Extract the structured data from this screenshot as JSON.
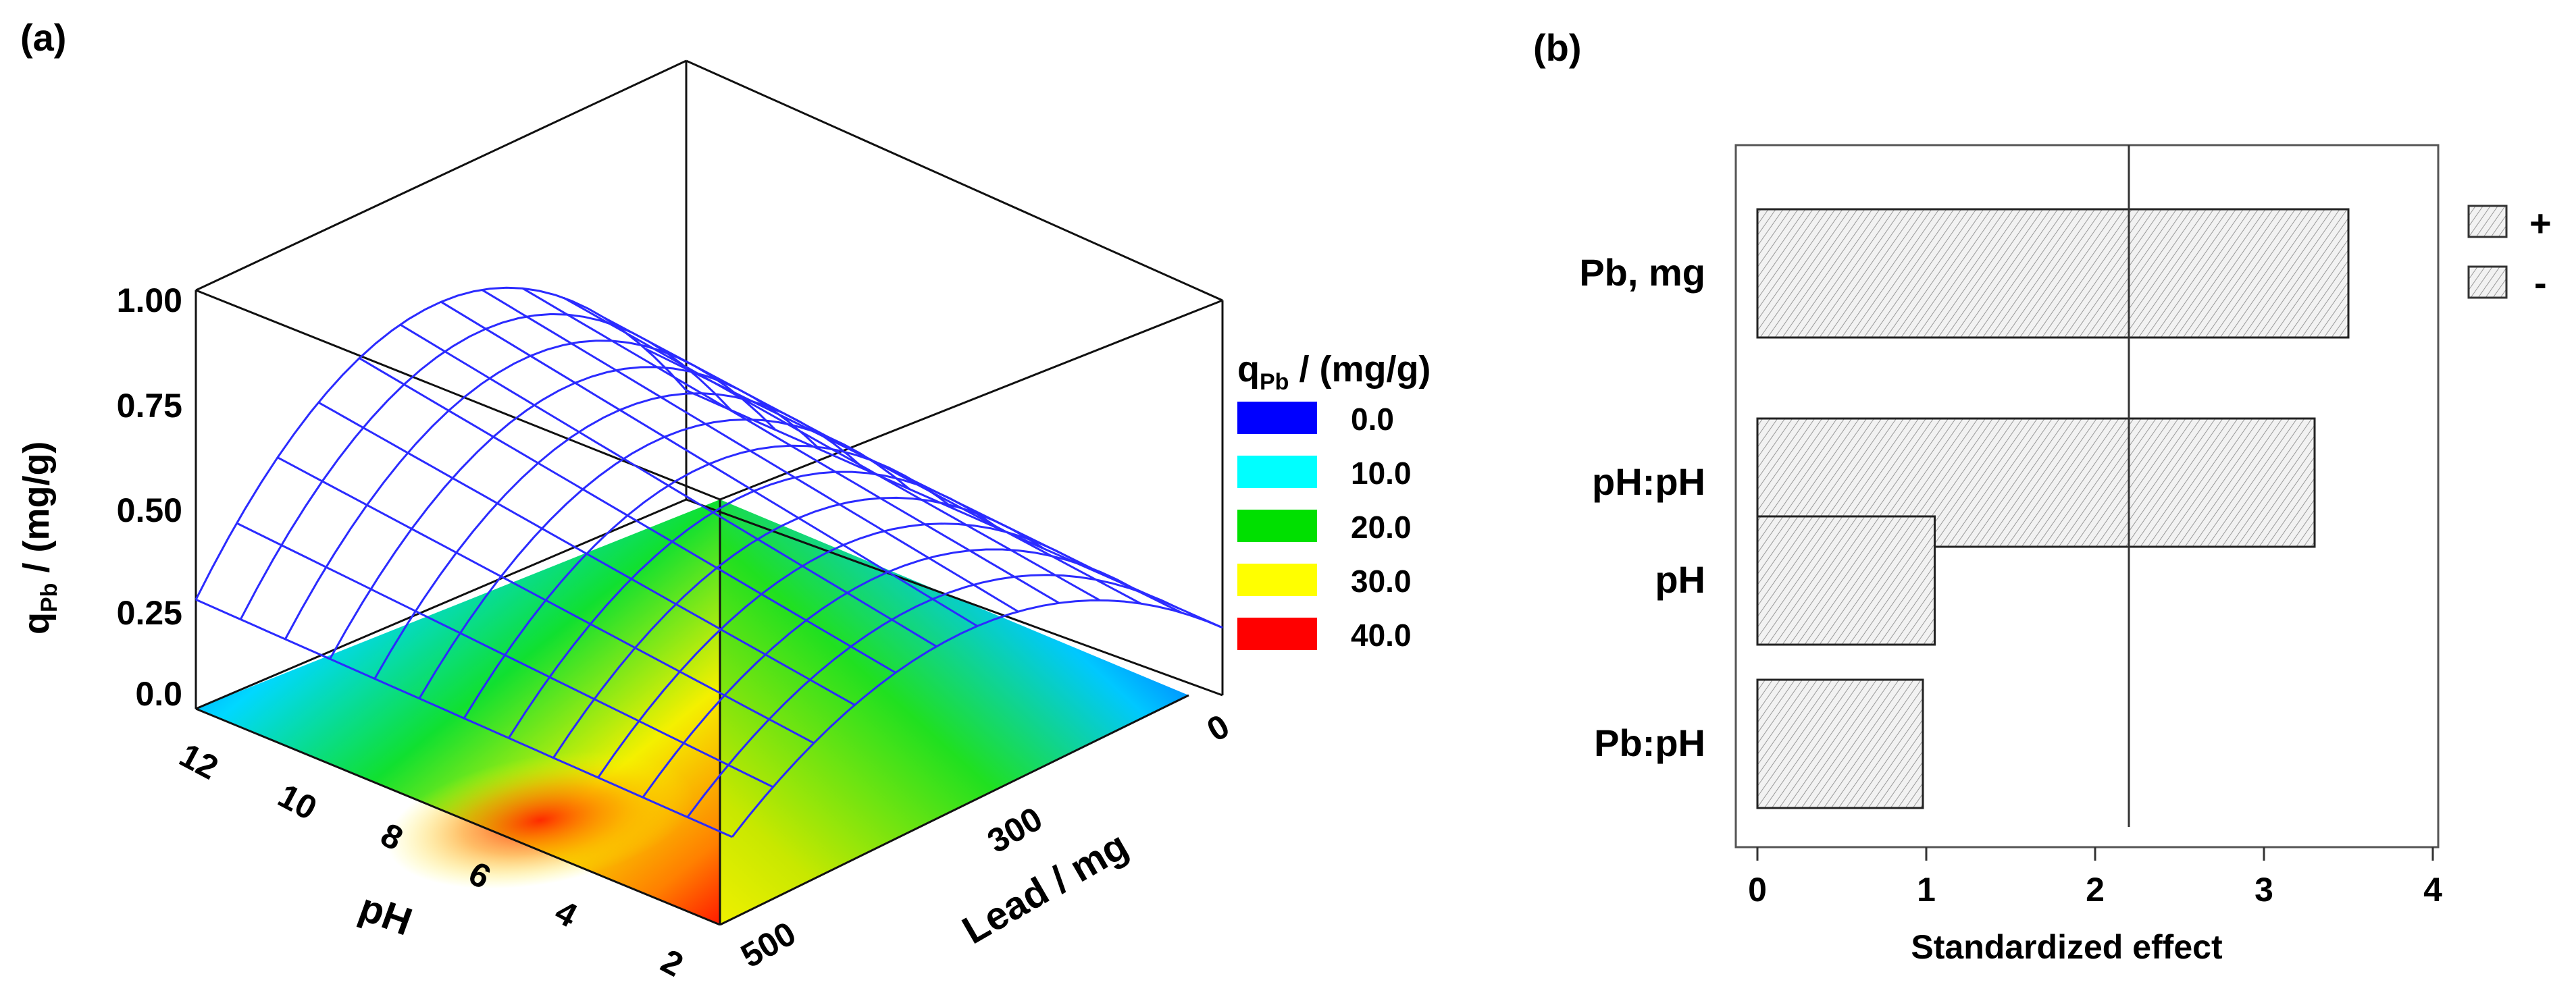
{
  "chart_data": [
    {
      "type": "surface",
      "panel_label": "(a)",
      "zlabel": "qPb / (mg/g)",
      "zlabel_main": "q",
      "zlabel_sub": "Pb",
      "zlabel_rest": " / (mg/g)",
      "xlabel": "pH",
      "ylabel": "Lead / mg",
      "z_ticks": [
        "1.00",
        "0.75",
        "0.50",
        "0.25",
        "0.0"
      ],
      "x_ticks": [
        "12",
        "10",
        "8",
        "6",
        "4",
        "2"
      ],
      "y_ticks": [
        "0",
        "300",
        "500"
      ],
      "legend_title": "qPb / (mg/g)",
      "legend_title_main": "q",
      "legend_title_sub": "Pb",
      "legend_title_rest": " / (mg/g)",
      "legend": [
        {
          "label": "0.0",
          "color": "#0000ff"
        },
        {
          "label": "10.0",
          "color": "#00ffff"
        },
        {
          "label": "20.0",
          "color": "#00e000"
        },
        {
          "label": "30.0",
          "color": "#ffff00"
        },
        {
          "label": "40.0",
          "color": "#ff0000"
        }
      ],
      "mesh_color": "#2b2bff"
    },
    {
      "type": "bar",
      "orientation": "horizontal",
      "panel_label": "(b)",
      "categories": [
        "Pb, mg",
        "pH:pH",
        "pH",
        "Pb:pH"
      ],
      "values": [
        3.5,
        3.3,
        1.05,
        0.98
      ],
      "xlabel": "Standardized effect",
      "xlim": [
        0,
        4
      ],
      "x_ticks": [
        "0",
        "1",
        "2",
        "3",
        "4"
      ],
      "reference_line": 2.2,
      "legend": [
        {
          "label": "+"
        },
        {
          "label": "-"
        }
      ]
    }
  ]
}
